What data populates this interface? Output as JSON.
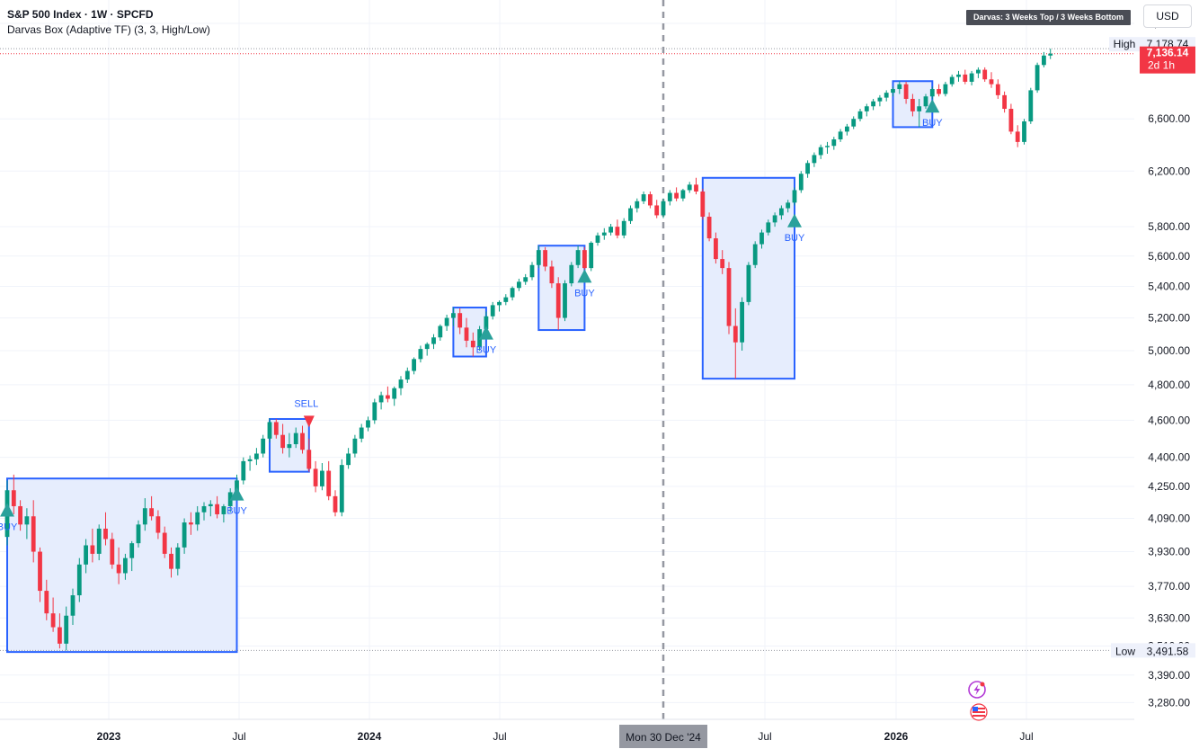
{
  "header": {
    "title": "S&P 500 Index · 1W · SPCFD",
    "indicator": "Darvas Box (Adaptive TF) (3, 3, High/Low)"
  },
  "badge": "Darvas: 3 Weeks Top / 3 Weeks Bottom",
  "currency": "USD",
  "colors": {
    "up": "#089981",
    "down": "#f23645",
    "box_border": "#2962ff",
    "box_fill": "#e6edfd",
    "signal": "#2aa19b",
    "crosshair": "#9598a1"
  },
  "price_tags": {
    "high_label": "High",
    "high_value": "7,178.74",
    "last_value": "7,136.14",
    "countdown": "2d 1h",
    "low_label": "Low",
    "low_value": "3,491.58"
  },
  "crosshair_label": "Mon 30 Dec '24",
  "icons": [
    "lightning-icon",
    "us-flag-icon"
  ],
  "chart_data": {
    "type": "candlestick",
    "y_axis": {
      "scale": "log",
      "range": [
        3215,
        7610
      ],
      "ticks": [
        7400,
        6600,
        6200,
        5800,
        5600,
        5400,
        5200,
        5000,
        4800,
        4600,
        4400,
        4250,
        4090,
        3930,
        3770,
        3630,
        3510,
        3390,
        3280
      ],
      "tick_labels": [
        "7,400.00",
        "6,600.00",
        "6,200.00",
        "5,800.00",
        "5,600.00",
        "5,400.00",
        "5,200.00",
        "5,000.00",
        "4,800.00",
        "4,600.00",
        "4,400.00",
        "4,250.00",
        "4,090.00",
        "3,930.00",
        "3,770.00",
        "3,630.00",
        "3,510.00",
        "3,390.00",
        "3,280.00"
      ]
    },
    "x_axis": {
      "labels": [
        "2023",
        "Jul",
        "2024",
        "Jul",
        "Jul",
        "2026",
        "Jul"
      ],
      "bold": [
        true,
        false,
        true,
        false,
        false,
        true,
        false
      ]
    },
    "high": 7178.74,
    "last": 7136.14,
    "low": 3491.58,
    "boxes": [
      {
        "start": 0,
        "end": 35,
        "top": 4290,
        "bottom": 3485
      },
      {
        "start": 40,
        "end": 46,
        "top": 4607,
        "bottom": 4325
      },
      {
        "start": 68,
        "end": 73,
        "top": 5265,
        "bottom": 4965
      },
      {
        "start": 81,
        "end": 88,
        "top": 5670,
        "bottom": 5125
      },
      {
        "start": 106,
        "end": 120,
        "top": 6150,
        "bottom": 4835
      },
      {
        "start": 135,
        "end": 141,
        "top": 6905,
        "bottom": 6535
      }
    ],
    "signals": [
      {
        "type": "BUY",
        "index": 0,
        "price": 4130
      },
      {
        "type": "BUY",
        "index": 35,
        "price": 4210
      },
      {
        "type": "SELL",
        "index": 46,
        "price": 4600
      },
      {
        "type": "BUY",
        "index": 73,
        "price": 5105
      },
      {
        "type": "BUY",
        "index": 88,
        "price": 5465
      },
      {
        "type": "BUY",
        "index": 120,
        "price": 5840
      },
      {
        "type": "BUY",
        "index": 141,
        "price": 6700
      }
    ],
    "crosshair_index": 100,
    "candles": [
      [
        4000,
        4280,
        3960,
        4230
      ],
      [
        4230,
        4310,
        4110,
        4150
      ],
      [
        4150,
        4180,
        4030,
        4060
      ],
      [
        4060,
        4140,
        3990,
        4100
      ],
      [
        4100,
        4180,
        3880,
        3930
      ],
      [
        3930,
        3950,
        3700,
        3750
      ],
      [
        3750,
        3800,
        3620,
        3650
      ],
      [
        3650,
        3720,
        3570,
        3590
      ],
      [
        3590,
        3650,
        3500,
        3520
      ],
      [
        3520,
        3680,
        3491.58,
        3640
      ],
      [
        3640,
        3760,
        3600,
        3730
      ],
      [
        3730,
        3900,
        3700,
        3870
      ],
      [
        3870,
        3990,
        3830,
        3960
      ],
      [
        3960,
        4040,
        3880,
        3920
      ],
      [
        3920,
        4060,
        3890,
        4040
      ],
      [
        4040,
        4120,
        3960,
        3990
      ],
      [
        3990,
        4020,
        3850,
        3870
      ],
      [
        3870,
        3950,
        3780,
        3830
      ],
      [
        3830,
        3920,
        3800,
        3900
      ],
      [
        3900,
        3980,
        3840,
        3970
      ],
      [
        3970,
        4080,
        3950,
        4060
      ],
      [
        4060,
        4190,
        4030,
        4140
      ],
      [
        4140,
        4200,
        4080,
        4100
      ],
      [
        4100,
        4130,
        3990,
        4020
      ],
      [
        4020,
        4050,
        3900,
        3920
      ],
      [
        3920,
        3950,
        3810,
        3850
      ],
      [
        3850,
        3970,
        3820,
        3950
      ],
      [
        3950,
        4090,
        3920,
        4070
      ],
      [
        4070,
        4120,
        4010,
        4060
      ],
      [
        4060,
        4150,
        4030,
        4120
      ],
      [
        4120,
        4170,
        4080,
        4150
      ],
      [
        4150,
        4180,
        4100,
        4160
      ],
      [
        4160,
        4200,
        4090,
        4110
      ],
      [
        4110,
        4160,
        4070,
        4150
      ],
      [
        4150,
        4240,
        4120,
        4220
      ],
      [
        4220,
        4310,
        4190,
        4280
      ],
      [
        4280,
        4400,
        4260,
        4380
      ],
      [
        4380,
        4410,
        4330,
        4390
      ],
      [
        4390,
        4450,
        4360,
        4420
      ],
      [
        4420,
        4520,
        4400,
        4500
      ],
      [
        4500,
        4610,
        4480,
        4590
      ],
      [
        4590,
        4607,
        4500,
        4520
      ],
      [
        4520,
        4580,
        4420,
        4450
      ],
      [
        4450,
        4530,
        4400,
        4470
      ],
      [
        4470,
        4560,
        4450,
        4530
      ],
      [
        4530,
        4570,
        4420,
        4440
      ],
      [
        4440,
        4500,
        4325,
        4340
      ],
      [
        4340,
        4380,
        4220,
        4250
      ],
      [
        4250,
        4370,
        4230,
        4330
      ],
      [
        4330,
        4380,
        4180,
        4200
      ],
      [
        4200,
        4230,
        4100,
        4120
      ],
      [
        4120,
        4390,
        4100,
        4360
      ],
      [
        4360,
        4450,
        4340,
        4420
      ],
      [
        4420,
        4520,
        4400,
        4500
      ],
      [
        4500,
        4580,
        4480,
        4560
      ],
      [
        4560,
        4620,
        4540,
        4600
      ],
      [
        4600,
        4720,
        4580,
        4700
      ],
      [
        4700,
        4760,
        4660,
        4740
      ],
      [
        4740,
        4790,
        4700,
        4720
      ],
      [
        4720,
        4790,
        4680,
        4780
      ],
      [
        4780,
        4850,
        4740,
        4830
      ],
      [
        4830,
        4900,
        4810,
        4880
      ],
      [
        4880,
        4960,
        4860,
        4950
      ],
      [
        4950,
        5030,
        4930,
        5010
      ],
      [
        5010,
        5050,
        4970,
        5040
      ],
      [
        5040,
        5100,
        5010,
        5080
      ],
      [
        5080,
        5160,
        5060,
        5150
      ],
      [
        5150,
        5220,
        5120,
        5200
      ],
      [
        5200,
        5265,
        5150,
        5230
      ],
      [
        5230,
        5260,
        5100,
        5140
      ],
      [
        5140,
        5200,
        5020,
        5060
      ],
      [
        5060,
        5110,
        4965,
        5020
      ],
      [
        5020,
        5150,
        5000,
        5130
      ],
      [
        5130,
        5240,
        5100,
        5210
      ],
      [
        5210,
        5300,
        5190,
        5280
      ],
      [
        5280,
        5310,
        5240,
        5300
      ],
      [
        5300,
        5350,
        5280,
        5330
      ],
      [
        5330,
        5400,
        5310,
        5390
      ],
      [
        5390,
        5450,
        5370,
        5430
      ],
      [
        5430,
        5480,
        5410,
        5460
      ],
      [
        5460,
        5560,
        5440,
        5540
      ],
      [
        5540,
        5670,
        5520,
        5640
      ],
      [
        5640,
        5660,
        5500,
        5530
      ],
      [
        5530,
        5570,
        5390,
        5420
      ],
      [
        5420,
        5460,
        5125,
        5200
      ],
      [
        5200,
        5440,
        5180,
        5420
      ],
      [
        5420,
        5560,
        5400,
        5540
      ],
      [
        5540,
        5670,
        5520,
        5640
      ],
      [
        5640,
        5660,
        5480,
        5520
      ],
      [
        5520,
        5700,
        5500,
        5690
      ],
      [
        5690,
        5760,
        5670,
        5740
      ],
      [
        5740,
        5790,
        5710,
        5760
      ],
      [
        5760,
        5820,
        5740,
        5800
      ],
      [
        5800,
        5850,
        5720,
        5740
      ],
      [
        5740,
        5860,
        5720,
        5840
      ],
      [
        5840,
        5950,
        5820,
        5930
      ],
      [
        5930,
        6000,
        5900,
        5980
      ],
      [
        5980,
        6050,
        5960,
        6030
      ],
      [
        6030,
        6050,
        5930,
        5950
      ],
      [
        5950,
        5990,
        5860,
        5880
      ],
      [
        5880,
        6000,
        5860,
        5980
      ],
      [
        5980,
        6060,
        5950,
        6040
      ],
      [
        6040,
        6080,
        5980,
        6000
      ],
      [
        6000,
        6070,
        5980,
        6060
      ],
      [
        6060,
        6120,
        6040,
        6100
      ],
      [
        6100,
        6150,
        6030,
        6050
      ],
      [
        6050,
        6070,
        5850,
        5870
      ],
      [
        5870,
        5900,
        5700,
        5720
      ],
      [
        5720,
        5760,
        5550,
        5580
      ],
      [
        5580,
        5640,
        5480,
        5520
      ],
      [
        5520,
        5560,
        5100,
        5150
      ],
      [
        5150,
        5260,
        4835,
        5050
      ],
      [
        5050,
        5330,
        5000,
        5300
      ],
      [
        5300,
        5560,
        5280,
        5540
      ],
      [
        5540,
        5700,
        5520,
        5680
      ],
      [
        5680,
        5780,
        5650,
        5760
      ],
      [
        5760,
        5850,
        5740,
        5830
      ],
      [
        5830,
        5900,
        5800,
        5880
      ],
      [
        5880,
        5950,
        5850,
        5930
      ],
      [
        5930,
        5990,
        5900,
        5970
      ],
      [
        5970,
        6080,
        5950,
        6060
      ],
      [
        6060,
        6200,
        6040,
        6180
      ],
      [
        6180,
        6280,
        6150,
        6260
      ],
      [
        6260,
        6340,
        6230,
        6320
      ],
      [
        6320,
        6400,
        6290,
        6380
      ],
      [
        6380,
        6420,
        6330,
        6390
      ],
      [
        6390,
        6460,
        6360,
        6440
      ],
      [
        6440,
        6520,
        6420,
        6500
      ],
      [
        6500,
        6560,
        6470,
        6540
      ],
      [
        6540,
        6620,
        6520,
        6600
      ],
      [
        6600,
        6680,
        6580,
        6660
      ],
      [
        6660,
        6720,
        6620,
        6700
      ],
      [
        6700,
        6760,
        6670,
        6740
      ],
      [
        6740,
        6790,
        6700,
        6770
      ],
      [
        6770,
        6830,
        6740,
        6810
      ],
      [
        6810,
        6860,
        6780,
        6840
      ],
      [
        6840,
        6905,
        6800,
        6880
      ],
      [
        6880,
        6900,
        6720,
        6760
      ],
      [
        6760,
        6800,
        6620,
        6660
      ],
      [
        6660,
        6760,
        6535,
        6700
      ],
      [
        6700,
        6800,
        6680,
        6780
      ],
      [
        6780,
        6860,
        6760,
        6840
      ],
      [
        6840,
        6880,
        6780,
        6800
      ],
      [
        6800,
        6900,
        6780,
        6880
      ],
      [
        6880,
        6960,
        6860,
        6940
      ],
      [
        6940,
        6990,
        6900,
        6960
      ],
      [
        6960,
        7000,
        6880,
        6900
      ],
      [
        6900,
        6990,
        6870,
        6970
      ],
      [
        6970,
        7020,
        6930,
        7000
      ],
      [
        7000,
        7020,
        6900,
        6920
      ],
      [
        6920,
        6980,
        6850,
        6880
      ],
      [
        6880,
        6920,
        6760,
        6790
      ],
      [
        6790,
        6820,
        6650,
        6680
      ],
      [
        6680,
        6720,
        6480,
        6500
      ],
      [
        6500,
        6550,
        6380,
        6420
      ],
      [
        6420,
        6600,
        6400,
        6580
      ],
      [
        6580,
        6850,
        6560,
        6830
      ],
      [
        6830,
        7060,
        6810,
        7040
      ],
      [
        7040,
        7150,
        7020,
        7120
      ],
      [
        7120,
        7178.74,
        7090,
        7136.14
      ]
    ]
  }
}
